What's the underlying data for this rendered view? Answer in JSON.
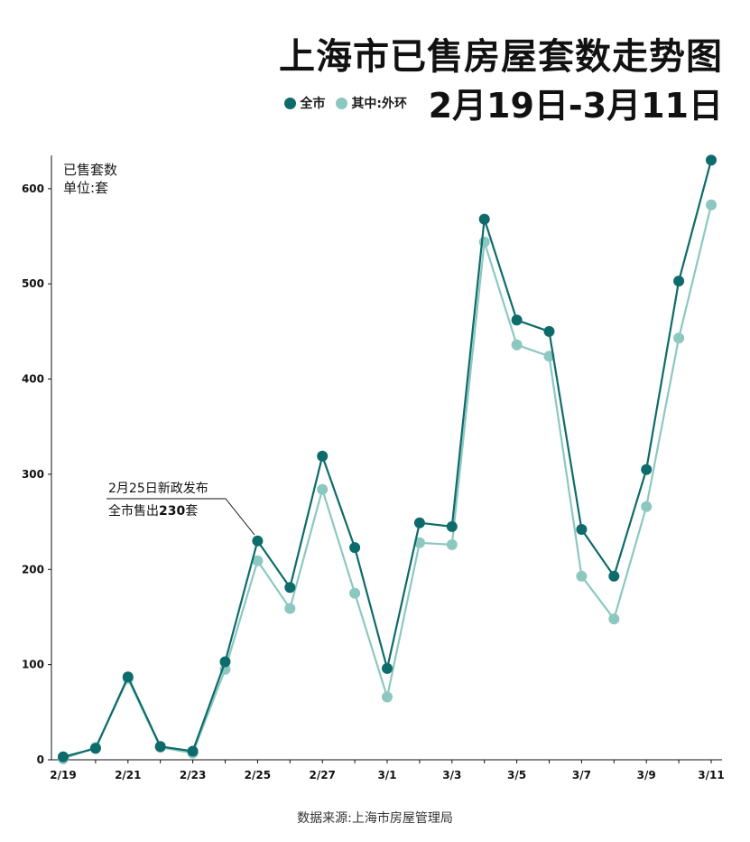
{
  "header": {
    "title": "上海市已售房屋套数走势图",
    "subtitle": "2月19日-3月11日"
  },
  "colors": {
    "all_city": "#0e6b6b",
    "outer_ring": "#8cc8bf"
  },
  "footer": {
    "source": "数据来源:上海市房屋管理局"
  },
  "chart_data": {
    "type": "line",
    "title": "上海市已售房屋套数走势图",
    "subtitle": "2月19日-3月11日",
    "ylabel": "已售套数",
    "yunit": "单位:套",
    "xlabel": "",
    "ylim": [
      0,
      630
    ],
    "yticks": [
      0,
      100,
      200,
      300,
      400,
      500,
      600
    ],
    "grid": false,
    "legend_position": "top",
    "x": [
      "2/19",
      "2/20",
      "2/21",
      "2/22",
      "2/23",
      "2/24",
      "2/25",
      "2/26",
      "2/27",
      "2/28",
      "3/1",
      "3/2",
      "3/3",
      "3/4",
      "3/5",
      "3/6",
      "3/7",
      "3/8",
      "3/9",
      "3/10",
      "3/11"
    ],
    "xtick_labels": [
      "2/19",
      "2/21",
      "2/23",
      "2/25",
      "2/27",
      "3/1",
      "3/3",
      "3/5",
      "3/7",
      "3/9",
      "3/11"
    ],
    "series": [
      {
        "name": "全市",
        "color": "#0e6b6b",
        "values": [
          3,
          12,
          87,
          14,
          9,
          103,
          230,
          181,
          319,
          223,
          96,
          249,
          245,
          568,
          462,
          450,
          242,
          193,
          305,
          503,
          630
        ]
      },
      {
        "name": "其中:外环",
        "color": "#8cc8bf",
        "values": [
          1,
          13,
          85,
          13,
          7,
          95,
          209,
          159,
          284,
          175,
          66,
          228,
          226,
          544,
          436,
          424,
          193,
          148,
          266,
          443,
          583
        ]
      }
    ],
    "annotation": {
      "target_x": "2/25",
      "line1": "2月25日新政发布",
      "line2_prefix": "全市售出",
      "line2_value": "230",
      "line2_suffix": "套"
    }
  }
}
